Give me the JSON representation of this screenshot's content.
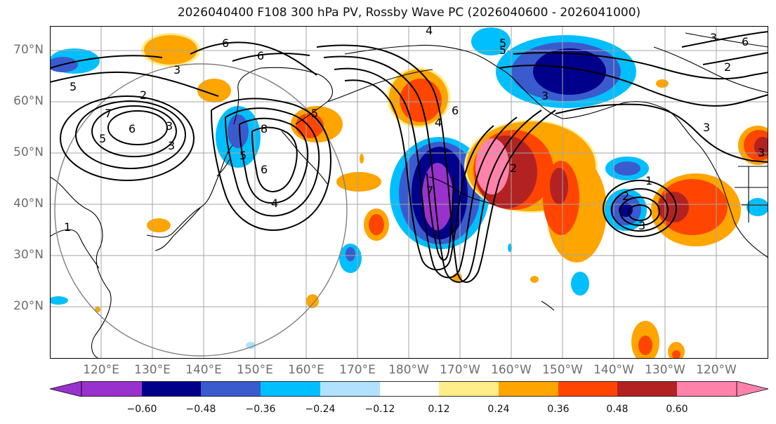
{
  "title": "2026040400 F108 300 hPa PV, Rossby Wave PC (2026040600 - 2026041000)",
  "latitude_labels": [
    "70°N",
    "60°N",
    "50°N",
    "40°N",
    "30°N",
    "20°N"
  ],
  "longitude_labels": [
    "120°E",
    "130°E",
    "140°E",
    "150°E",
    "160°E",
    "170°E",
    "180°W",
    "170°W",
    "160°W",
    "150°W",
    "140°W",
    "130°W",
    "120°W"
  ],
  "colorbar": {
    "labels": [
      "−0.60",
      "−0.48",
      "−0.36",
      "−0.24",
      "−0.12",
      "0.12",
      "0.24",
      "0.36",
      "0.48",
      "0.60"
    ],
    "colors": [
      "#9932cc",
      "#00008b",
      "#3a5bcd",
      "#00bfff",
      "#b0e2ff",
      "#ffffff",
      "#ffec8b",
      "#ffa500",
      "#ff4500",
      "#b22222",
      "#ff82ab"
    ]
  },
  "contour_labels": [
    "5",
    "6",
    "4",
    "3",
    "2",
    "5",
    "6",
    "3",
    "5",
    "7",
    "6",
    "3",
    "8",
    "5",
    "6",
    "4",
    "5",
    "6",
    "7",
    "4",
    "5",
    "3",
    "2",
    "1",
    "2",
    "3",
    "6",
    "1",
    "3",
    "3",
    "2",
    "3"
  ]
}
